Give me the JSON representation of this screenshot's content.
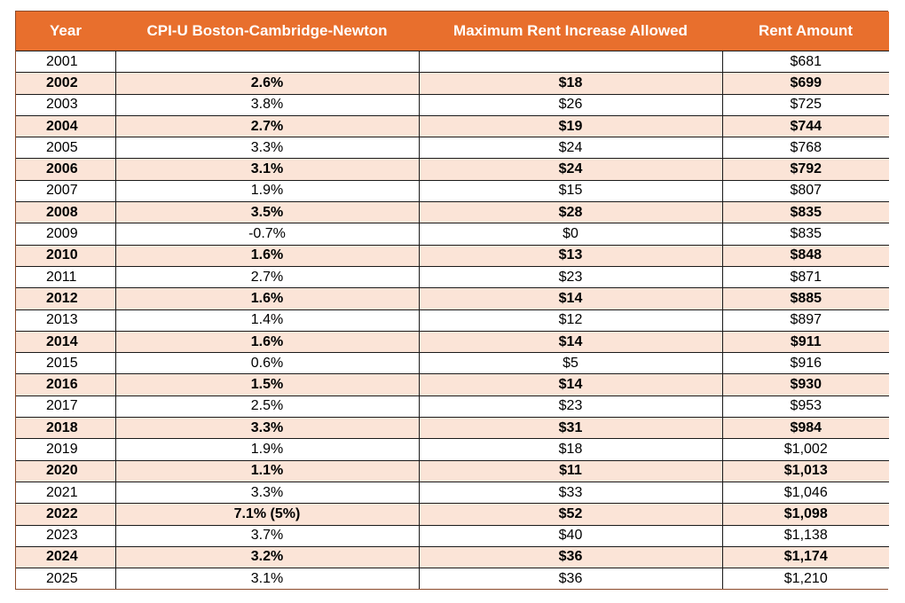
{
  "colors": {
    "header_bg": "#e86f2d",
    "header_text": "#ffffff",
    "alt_row_bg": "#fbe4d7",
    "row_bg": "#ffffff"
  },
  "headers": {
    "year": "Year",
    "cpi": "CPI-U Boston-Cambridge-Newton",
    "max_increase": "Maximum Rent Increase Allowed",
    "rent": "Rent Amount"
  },
  "rows": [
    {
      "year": "2001",
      "cpi": "",
      "max_increase": "",
      "rent": "$681"
    },
    {
      "year": "2002",
      "cpi": "2.6%",
      "max_increase": "$18",
      "rent": "$699"
    },
    {
      "year": "2003",
      "cpi": "3.8%",
      "max_increase": "$26",
      "rent": "$725"
    },
    {
      "year": "2004",
      "cpi": "2.7%",
      "max_increase": "$19",
      "rent": "$744"
    },
    {
      "year": "2005",
      "cpi": "3.3%",
      "max_increase": "$24",
      "rent": "$768"
    },
    {
      "year": "2006",
      "cpi": "3.1%",
      "max_increase": "$24",
      "rent": "$792"
    },
    {
      "year": "2007",
      "cpi": "1.9%",
      "max_increase": "$15",
      "rent": "$807"
    },
    {
      "year": "2008",
      "cpi": "3.5%",
      "max_increase": "$28",
      "rent": "$835"
    },
    {
      "year": "2009",
      "cpi": "-0.7%",
      "max_increase": "$0",
      "rent": "$835"
    },
    {
      "year": "2010",
      "cpi": "1.6%",
      "max_increase": "$13",
      "rent": "$848"
    },
    {
      "year": "2011",
      "cpi": "2.7%",
      "max_increase": "$23",
      "rent": "$871"
    },
    {
      "year": "2012",
      "cpi": "1.6%",
      "max_increase": "$14",
      "rent": "$885"
    },
    {
      "year": "2013",
      "cpi": "1.4%",
      "max_increase": "$12",
      "rent": "$897"
    },
    {
      "year": "2014",
      "cpi": "1.6%",
      "max_increase": "$14",
      "rent": "$911"
    },
    {
      "year": "2015",
      "cpi": "0.6%",
      "max_increase": "$5",
      "rent": "$916"
    },
    {
      "year": "2016",
      "cpi": "1.5%",
      "max_increase": "$14",
      "rent": "$930"
    },
    {
      "year": "2017",
      "cpi": "2.5%",
      "max_increase": "$23",
      "rent": "$953"
    },
    {
      "year": "2018",
      "cpi": "3.3%",
      "max_increase": "$31",
      "rent": "$984"
    },
    {
      "year": "2019",
      "cpi": "1.9%",
      "max_increase": "$18",
      "rent": "$1,002"
    },
    {
      "year": "2020",
      "cpi": "1.1%",
      "max_increase": "$11",
      "rent": "$1,013"
    },
    {
      "year": "2021",
      "cpi": "3.3%",
      "max_increase": "$33",
      "rent": "$1,046"
    },
    {
      "year": "2022",
      "cpi": "7.1% (5%)",
      "max_increase": "$52",
      "rent": "$1,098"
    },
    {
      "year": "2023",
      "cpi": "3.7%",
      "max_increase": "$40",
      "rent": "$1,138"
    },
    {
      "year": "2024",
      "cpi": "3.2%",
      "max_increase": "$36",
      "rent": "$1,174"
    },
    {
      "year": "2025",
      "cpi": "3.1%",
      "max_increase": "$36",
      "rent": "$1,210"
    }
  ]
}
